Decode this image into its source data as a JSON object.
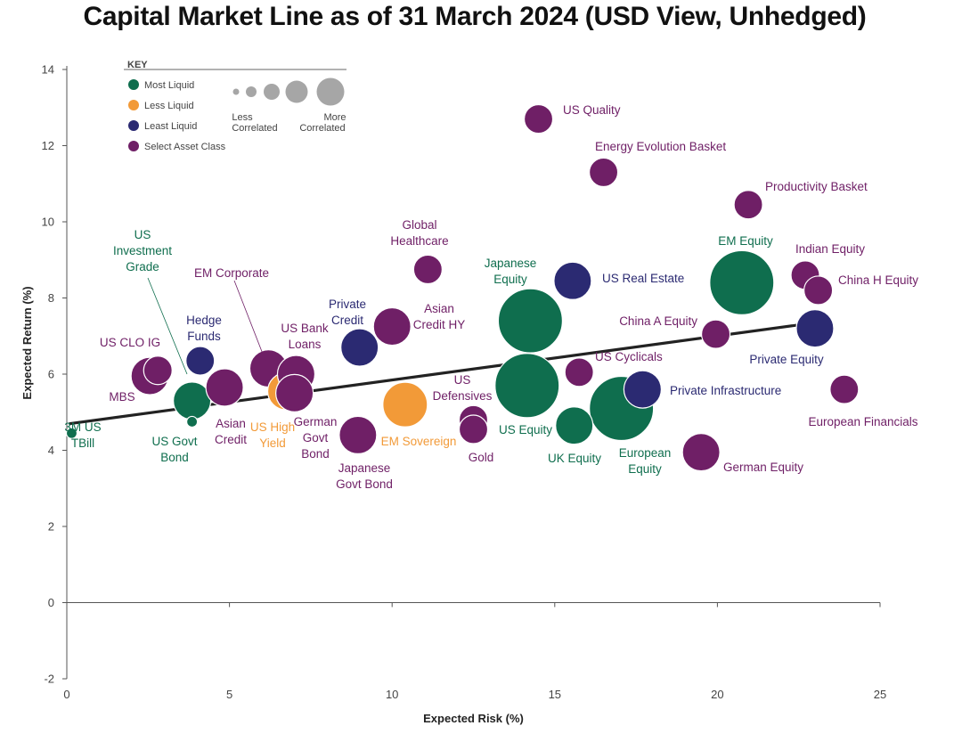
{
  "title": "Capital Market Line as of 31 March 2024 (USD View, Unhedged)",
  "colors": {
    "most_liquid": "#0f6e4e",
    "less_liquid": "#f29a38",
    "least_liquid": "#2b2a72",
    "select": "#6f1f66",
    "size_key": "#a6a6a6",
    "line": "#222222",
    "axis": "#555555"
  },
  "key": {
    "title": "KEY",
    "items": [
      {
        "label": "Most Liquid",
        "class": "most_liquid"
      },
      {
        "label": "Less Liquid",
        "class": "less_liquid"
      },
      {
        "label": "Least Liquid",
        "class": "least_liquid"
      },
      {
        "label": "Select Asset Class",
        "class": "select"
      }
    ],
    "size_low_label": [
      "Less",
      "Correlated"
    ],
    "size_high_label": [
      "More",
      "Correlated"
    ]
  },
  "chart_data": {
    "type": "scatter",
    "title": "Capital Market Line as of 31 March 2024 (USD View, Unhedged)",
    "xlabel": "Expected Risk (%)",
    "ylabel": "Expected Return (%)",
    "xlim": [
      0,
      25
    ],
    "ylim": [
      -2,
      14
    ],
    "xticks": [
      0,
      5,
      10,
      15,
      20,
      25
    ],
    "yticks": [
      -2,
      0,
      2,
      4,
      6,
      8,
      10,
      12,
      14
    ],
    "grid": false,
    "legend": "top-left",
    "line": {
      "x": [
        0.1,
        23
      ],
      "y": [
        4.7,
        7.35
      ]
    },
    "points": [
      {
        "name": "3M US TBill",
        "x": 0.15,
        "y": 4.45,
        "class": "most_liquid",
        "size": 1,
        "label": [
          "3M US",
          "TBill"
        ]
      },
      {
        "name": "US Govt Bond",
        "x": 3.85,
        "y": 5.3,
        "class": "most_liquid",
        "size": 3,
        "label": [
          "US Govt",
          "Bond"
        ]
      },
      {
        "name": "US Investment Grade",
        "x": 3.85,
        "y": 4.75,
        "class": "most_liquid",
        "size": 1,
        "label": [
          "US",
          "Investment",
          "Grade"
        ]
      },
      {
        "name": "Hedge Funds",
        "x": 4.1,
        "y": 6.35,
        "class": "least_liquid",
        "size": 2,
        "label": [
          "Hedge",
          "Funds"
        ]
      },
      {
        "name": "US CLO IG",
        "x": 2.8,
        "y": 6.1,
        "class": "select",
        "size": 2,
        "label": [
          "US CLO IG"
        ]
      },
      {
        "name": "MBS",
        "x": 2.55,
        "y": 5.95,
        "class": "select",
        "size": 3,
        "label": [
          "MBS"
        ]
      },
      {
        "name": "Asian Credit",
        "x": 4.85,
        "y": 5.65,
        "class": "select",
        "size": 3,
        "label": [
          "Asian",
          "Credit"
        ]
      },
      {
        "name": "EM Corporate",
        "x": 6.2,
        "y": 6.15,
        "class": "select",
        "size": 3,
        "label": [
          "EM Corporate"
        ]
      },
      {
        "name": "US High Yield",
        "x": 6.75,
        "y": 5.55,
        "class": "less_liquid",
        "size": 3,
        "label": [
          "US High",
          "Yield"
        ]
      },
      {
        "name": "US Bank Loans",
        "x": 7.05,
        "y": 6.0,
        "class": "select",
        "size": 3,
        "label": [
          "US Bank",
          "Loans"
        ]
      },
      {
        "name": "German Govt Bond",
        "x": 7.0,
        "y": 5.5,
        "class": "select",
        "size": 3,
        "label": [
          "German",
          "Govt",
          "Bond"
        ]
      },
      {
        "name": "Private Credit",
        "x": 9.0,
        "y": 6.7,
        "class": "least_liquid",
        "size": 3,
        "label": [
          "Private",
          "Credit"
        ]
      },
      {
        "name": "Japanese Govt Bond",
        "x": 8.95,
        "y": 4.4,
        "class": "select",
        "size": 3,
        "label": [
          "Japanese",
          "Govt Bond"
        ]
      },
      {
        "name": "Asian Credit HY",
        "x": 10.0,
        "y": 7.25,
        "class": "select",
        "size": 3,
        "label": [
          "Asian",
          "Credit HY"
        ]
      },
      {
        "name": "Global Healthcare",
        "x": 11.1,
        "y": 8.75,
        "class": "select",
        "size": 2,
        "label": [
          "Global",
          "Healthcare"
        ]
      },
      {
        "name": "EM Sovereign",
        "x": 10.4,
        "y": 5.2,
        "class": "less_liquid",
        "size": 4,
        "label": [
          "EM Sovereign"
        ]
      },
      {
        "name": "US Defensives",
        "x": 12.5,
        "y": 4.8,
        "class": "select",
        "size": 2,
        "label": [
          "US",
          "Defensives"
        ]
      },
      {
        "name": "Gold",
        "x": 12.5,
        "y": 4.55,
        "class": "select",
        "size": 2,
        "label": [
          "Gold"
        ]
      },
      {
        "name": "Japanese Equity",
        "x": 14.25,
        "y": 7.4,
        "class": "most_liquid",
        "size": 5,
        "label": [
          "Japanese",
          "Equity"
        ]
      },
      {
        "name": "US Equity",
        "x": 14.15,
        "y": 5.7,
        "class": "most_liquid",
        "size": 5,
        "label": [
          "US Equity"
        ]
      },
      {
        "name": "US Quality",
        "x": 14.5,
        "y": 12.7,
        "class": "select",
        "size": 2,
        "label": [
          "US Quality"
        ]
      },
      {
        "name": "UK Equity",
        "x": 15.6,
        "y": 4.65,
        "class": "most_liquid",
        "size": 3,
        "label": [
          "UK Equity"
        ]
      },
      {
        "name": "US Cyclicals",
        "x": 15.75,
        "y": 6.05,
        "class": "select",
        "size": 2,
        "label": [
          "US Cyclicals"
        ]
      },
      {
        "name": "US Real Estate",
        "x": 15.55,
        "y": 8.45,
        "class": "least_liquid",
        "size": 3,
        "label": [
          "US Real Estate"
        ]
      },
      {
        "name": "Energy Evolution Basket",
        "x": 16.5,
        "y": 11.3,
        "class": "select",
        "size": 2,
        "label": [
          "Energy Evolution Basket"
        ]
      },
      {
        "name": "European Equity",
        "x": 17.05,
        "y": 5.1,
        "class": "most_liquid",
        "size": 5,
        "label": [
          "European",
          "Equity"
        ]
      },
      {
        "name": "Private Infrastructure",
        "x": 17.7,
        "y": 5.6,
        "class": "least_liquid",
        "size": 3,
        "label": [
          "Private Infrastructure"
        ]
      },
      {
        "name": "China A Equity",
        "x": 19.95,
        "y": 7.05,
        "class": "select",
        "size": 2,
        "label": [
          "China A Equity"
        ]
      },
      {
        "name": "German Equity",
        "x": 19.5,
        "y": 3.95,
        "class": "select",
        "size": 3,
        "label": [
          "German Equity"
        ]
      },
      {
        "name": "EM Equity",
        "x": 20.75,
        "y": 8.4,
        "class": "most_liquid",
        "size": 5,
        "label": [
          "EM Equity"
        ]
      },
      {
        "name": "Productivity Basket",
        "x": 20.95,
        "y": 10.45,
        "class": "select",
        "size": 2,
        "label": [
          "Productivity Basket"
        ]
      },
      {
        "name": "Indian Equity",
        "x": 22.7,
        "y": 8.6,
        "class": "select",
        "size": 2,
        "label": [
          "Indian Equity"
        ]
      },
      {
        "name": "China H Equity",
        "x": 23.1,
        "y": 8.2,
        "class": "select",
        "size": 2,
        "label": [
          "China H Equity"
        ]
      },
      {
        "name": "Private Equity",
        "x": 23.0,
        "y": 7.2,
        "class": "least_liquid",
        "size": 3,
        "label": [
          "Private Equity"
        ]
      },
      {
        "name": "European Financials",
        "x": 23.9,
        "y": 5.6,
        "class": "select",
        "size": 2,
        "label": [
          "European Financials"
        ]
      }
    ]
  }
}
